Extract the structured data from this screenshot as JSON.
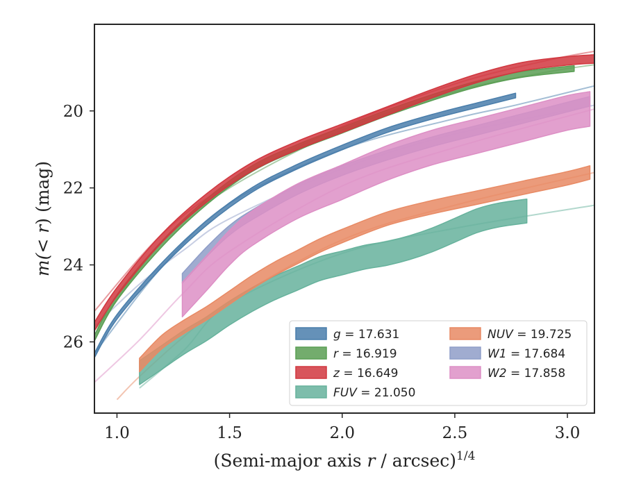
{
  "chart_data": {
    "type": "line",
    "xlabel": "(Semi-major axis r / arcsec)",
    "xlabel_parts": {
      "pre": "(Semi-major axis ",
      "var": "r",
      "post": " / arcsec)",
      "sup": "1/4"
    },
    "ylabel": "m(< r) (mag)",
    "ylabel_parts": {
      "pre": "m(< ",
      "var": "r",
      "post": ") (mag)"
    },
    "xlim": [
      0.9,
      3.12
    ],
    "ylim": [
      27.85,
      17.75
    ],
    "y_inverted": true,
    "grid": false,
    "legend_position": "lower-right",
    "x_ticks": [
      1.0,
      1.5,
      2.0,
      2.5,
      3.0
    ],
    "x_tick_labels": [
      "1.0",
      "1.5",
      "2.0",
      "2.5",
      "3.0"
    ],
    "y_ticks": [
      20,
      22,
      24,
      26
    ],
    "y_tick_labels": [
      "20",
      "22",
      "24",
      "26"
    ],
    "series": [
      {
        "name": "g",
        "value": "17.631",
        "color": "#4a7eab",
        "x": [
          0.9,
          1.0,
          1.2,
          1.4,
          1.6,
          1.8,
          2.0,
          2.2,
          2.4,
          2.6,
          2.77
        ],
        "y": [
          26.35,
          25.35,
          24.0,
          22.9,
          22.05,
          21.45,
          20.95,
          20.5,
          20.15,
          19.85,
          19.6
        ],
        "width": 0.12,
        "model": {
          "x": [
            0.9,
            1.2,
            1.5,
            2.0,
            2.5,
            2.77,
            3.12
          ],
          "y": [
            26.3,
            24.05,
            22.4,
            21.0,
            20.2,
            19.85,
            19.35
          ]
        }
      },
      {
        "name": "r",
        "value": "16.919",
        "color": "#5a9e54",
        "x": [
          0.9,
          1.0,
          1.2,
          1.4,
          1.6,
          1.8,
          2.0,
          2.2,
          2.4,
          2.6,
          2.8,
          3.03
        ],
        "y": [
          25.9,
          24.85,
          23.45,
          22.35,
          21.5,
          20.95,
          20.5,
          20.05,
          19.65,
          19.3,
          19.05,
          18.9
        ],
        "width": 0.15,
        "model": {
          "x": [
            0.9,
            1.2,
            1.5,
            2.0,
            2.5,
            2.9,
            3.12
          ],
          "y": [
            25.7,
            23.4,
            22.0,
            20.5,
            19.5,
            19.0,
            18.8
          ]
        }
      },
      {
        "name": "z",
        "value": "16.649",
        "color": "#d1373f",
        "x": [
          0.9,
          1.0,
          1.2,
          1.4,
          1.6,
          1.8,
          2.0,
          2.2,
          2.4,
          2.6,
          2.8,
          3.0,
          3.12
        ],
        "y": [
          25.6,
          24.7,
          23.3,
          22.25,
          21.45,
          20.9,
          20.45,
          20.0,
          19.55,
          19.15,
          18.85,
          18.7,
          18.65
        ],
        "width": 0.22,
        "model": {
          "x": [
            0.9,
            1.2,
            1.5,
            2.0,
            2.5,
            2.9,
            3.12
          ],
          "y": [
            25.2,
            23.2,
            21.9,
            20.4,
            19.3,
            18.7,
            18.45
          ]
        }
      },
      {
        "name": "FUV",
        "value": "21.050",
        "color": "#66b29c",
        "x": [
          1.1,
          1.2,
          1.3,
          1.4,
          1.5,
          1.6,
          1.7,
          1.8,
          1.9,
          2.0,
          2.1,
          2.2,
          2.3,
          2.4,
          2.5,
          2.6,
          2.7,
          2.82
        ],
        "y": [
          26.8,
          26.4,
          26.0,
          25.65,
          25.25,
          24.9,
          24.6,
          24.35,
          24.1,
          23.95,
          23.8,
          23.7,
          23.55,
          23.35,
          23.1,
          22.85,
          22.7,
          22.6
        ],
        "width": 0.62,
        "model": {
          "x": [
            1.1,
            1.3,
            1.5,
            2.0,
            2.5,
            3.12
          ],
          "y": [
            27.2,
            26.2,
            25.0,
            23.7,
            23.05,
            22.45
          ]
        }
      },
      {
        "name": "NUV",
        "value": "19.725",
        "color": "#e88a64",
        "x": [
          1.1,
          1.2,
          1.3,
          1.4,
          1.5,
          1.6,
          1.7,
          1.8,
          1.9,
          2.0,
          2.2,
          2.4,
          2.6,
          2.8,
          3.0,
          3.1
        ],
        "y": [
          26.6,
          26.0,
          25.6,
          25.25,
          24.85,
          24.45,
          24.1,
          23.8,
          23.5,
          23.25,
          22.8,
          22.5,
          22.25,
          22.0,
          21.75,
          21.6
        ],
        "width": 0.35,
        "model": {
          "x": [
            1.0,
            1.1,
            1.3,
            1.5,
            2.0,
            2.5,
            3.12
          ],
          "y": [
            27.5,
            26.9,
            25.85,
            24.95,
            23.35,
            22.45,
            21.6
          ]
        }
      },
      {
        "name": "W1",
        "value": "17.684",
        "color": "#8f9ec8",
        "x": [
          1.29,
          1.4,
          1.5,
          1.6,
          1.8,
          2.0,
          2.2,
          2.4,
          2.6,
          2.8,
          3.0,
          3.1
        ],
        "y": [
          24.35,
          23.65,
          23.1,
          22.7,
          22.05,
          21.55,
          21.15,
          20.8,
          20.5,
          20.2,
          19.9,
          19.75
        ],
        "width": 0.25,
        "model": {
          "x": [
            0.9,
            1.1,
            1.3,
            1.5,
            2.0,
            2.5,
            3.12
          ],
          "y": [
            25.6,
            24.5,
            23.6,
            22.8,
            21.5,
            20.6,
            19.85
          ]
        }
      },
      {
        "name": "W2",
        "value": "17.858",
        "color": "#dd8fc5",
        "x": [
          1.29,
          1.4,
          1.5,
          1.6,
          1.8,
          2.0,
          2.2,
          2.4,
          2.6,
          2.8,
          3.0,
          3.1
        ],
        "y": [
          24.9,
          24.2,
          23.55,
          23.05,
          22.35,
          21.85,
          21.35,
          20.95,
          20.65,
          20.35,
          20.05,
          19.95
        ],
        "width": 0.9,
        "model": {
          "x": [
            0.9,
            1.1,
            1.3,
            1.5,
            2.0,
            2.5,
            3.12
          ],
          "y": [
            27.05,
            25.95,
            24.7,
            23.65,
            21.95,
            20.95,
            19.95
          ]
        }
      }
    ]
  },
  "legend": {
    "columns": [
      [
        {
          "label": "g",
          "value": "17.631",
          "color": "#4a7eab"
        },
        {
          "label": "r",
          "value": "16.919",
          "color": "#5a9e54"
        },
        {
          "label": "z",
          "value": "16.649",
          "color": "#d1373f"
        },
        {
          "label": "FUV",
          "value": "21.050",
          "color": "#66b29c"
        }
      ],
      [
        {
          "label": "NUV",
          "value": "19.725",
          "color": "#e88a64"
        },
        {
          "label": "W1",
          "value": "17.684",
          "color": "#8f9ec8"
        },
        {
          "label": "W2",
          "value": "17.858",
          "color": "#dd8fc5"
        }
      ]
    ]
  }
}
